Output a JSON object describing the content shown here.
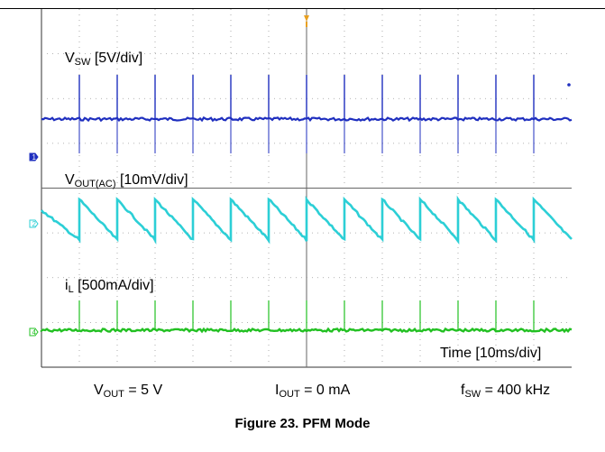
{
  "scope": {
    "labels": {
      "vsw": {
        "main": "V",
        "sub": "SW",
        "rest": " [5V/div]"
      },
      "vout": {
        "main": "V",
        "sub": "OUT(AC)",
        "rest": " [10mV/div]"
      },
      "il": {
        "main": "i",
        "sub": "L",
        "rest": " [500mA/div]"
      },
      "time": "Time [10ms/div]"
    },
    "channel_markers": [
      "1",
      "2",
      "4"
    ],
    "colors": {
      "vsw": "#1f2fbf",
      "vout": "#2ccfd6",
      "il": "#22c022",
      "grid": "#9a9a9a",
      "trigger": "#e8a020"
    }
  },
  "conditions": {
    "vout": {
      "main": "V",
      "sub": "OUT",
      "rest": " = 5 V"
    },
    "iout": {
      "main": "I",
      "sub": "OUT",
      "rest": " = 0 mA"
    },
    "fsw": {
      "main": "f",
      "sub": "SW",
      "rest": " = 400 kHz"
    }
  },
  "caption": "Figure 23. PFM Mode",
  "chart_data": {
    "type": "line",
    "x_divisions": 14,
    "y_divisions": 8,
    "x_unit": "ms",
    "x_scale_per_div": 10,
    "xlim": [
      0,
      140
    ],
    "series": [
      {
        "name": "VSW [5V/div]",
        "kind": "pulse-train",
        "pulse_times": [
          10,
          20,
          30,
          40,
          50,
          60,
          70,
          80,
          90,
          100,
          110,
          120,
          130
        ]
      },
      {
        "name": "VOUT(AC) [10mV/div]",
        "kind": "sawtooth",
        "reset_times": [
          10,
          20,
          30,
          40,
          50,
          60,
          70,
          80,
          90,
          100,
          110,
          120,
          130
        ]
      },
      {
        "name": "iL [500mA/div]",
        "kind": "pulse-train",
        "pulse_times": [
          10,
          20,
          30,
          40,
          50,
          60,
          70,
          80,
          90,
          100,
          110,
          120,
          130
        ]
      }
    ]
  }
}
